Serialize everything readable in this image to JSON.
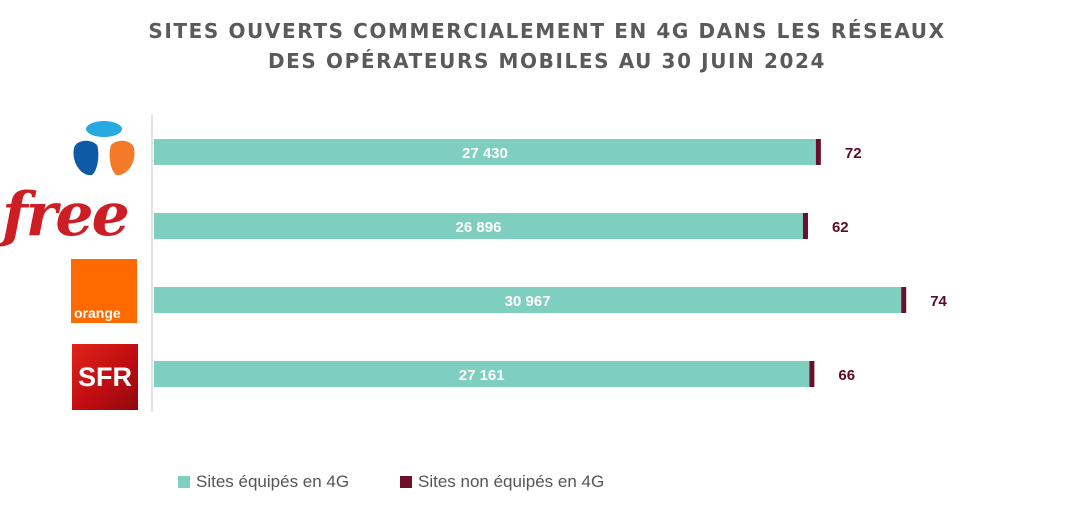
{
  "title_lines": [
    "SITES OUVERTS COMMERCIALEMENT EN 4G DANS LES RÉSEAUX",
    "DES OPÉRATEURS MOBILES AU 30 JUIN 2024"
  ],
  "chart_data": {
    "type": "bar",
    "orientation": "horizontal",
    "stacked": true,
    "title": "SITES OUVERTS COMMERCIALEMENT EN 4G DANS LES RÉSEAUX DES OPÉRATEURS MOBILES AU 30 JUIN 2024",
    "categories": [
      "Bouygues Telecom",
      "Free",
      "Orange",
      "SFR"
    ],
    "series": [
      {
        "name": "Sites équipés en 4G",
        "color": "#7fcfc0",
        "values": [
          27430,
          26896,
          30967,
          27161
        ],
        "labels": [
          "27 430",
          "26 896",
          "30 967",
          "27 161"
        ]
      },
      {
        "name": "Sites non équipés en 4G",
        "color": "#6d0f2a",
        "values": [
          72,
          62,
          74,
          66
        ],
        "labels": [
          "72",
          "62",
          "74",
          "66"
        ]
      }
    ],
    "xlim": [
      0,
      35000
    ],
    "grid": false,
    "legend": "bottom"
  },
  "logos": [
    {
      "name": "bouygues-logo",
      "icon": "bouygues-telecom-logo"
    },
    {
      "name": "free-logo",
      "icon": "free-logo",
      "text": "free"
    },
    {
      "name": "orange-logo",
      "icon": "orange-logo",
      "text": "orange"
    },
    {
      "name": "sfr-logo",
      "icon": "sfr-logo",
      "text": "SFR"
    }
  ],
  "legend": {
    "items": [
      {
        "label": "Sites équipés en 4G",
        "color": "#7fcfc0"
      },
      {
        "label": "Sites non équipés en 4G",
        "color": "#6d0f2a"
      }
    ]
  }
}
